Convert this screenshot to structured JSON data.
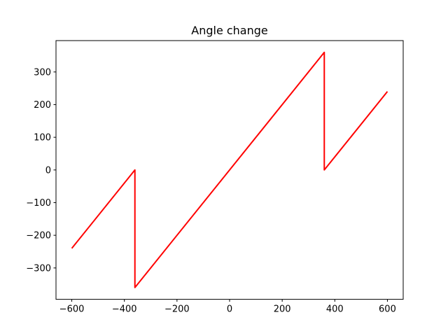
{
  "chart_data": {
    "type": "line",
    "title": "Angle change",
    "xlabel": "",
    "ylabel": "",
    "xlim": [
      -660,
      660
    ],
    "ylim": [
      -396,
      396
    ],
    "xticks": [
      -600,
      -400,
      -200,
      0,
      200,
      400,
      600
    ],
    "yticks": [
      -300,
      -200,
      -100,
      0,
      100,
      200,
      300
    ],
    "xtick_labels": [
      "−600",
      "−400",
      "−200",
      "0",
      "200",
      "400",
      "600"
    ],
    "ytick_labels": [
      "−300",
      "−200",
      "−100",
      "0",
      "100",
      "200",
      "300"
    ],
    "grid": false,
    "series": [
      {
        "color": "#ff0000",
        "x": [
          -600,
          -360,
          -360,
          360,
          360,
          600
        ],
        "y": [
          -240,
          0,
          -360,
          360,
          0,
          240
        ]
      }
    ]
  }
}
